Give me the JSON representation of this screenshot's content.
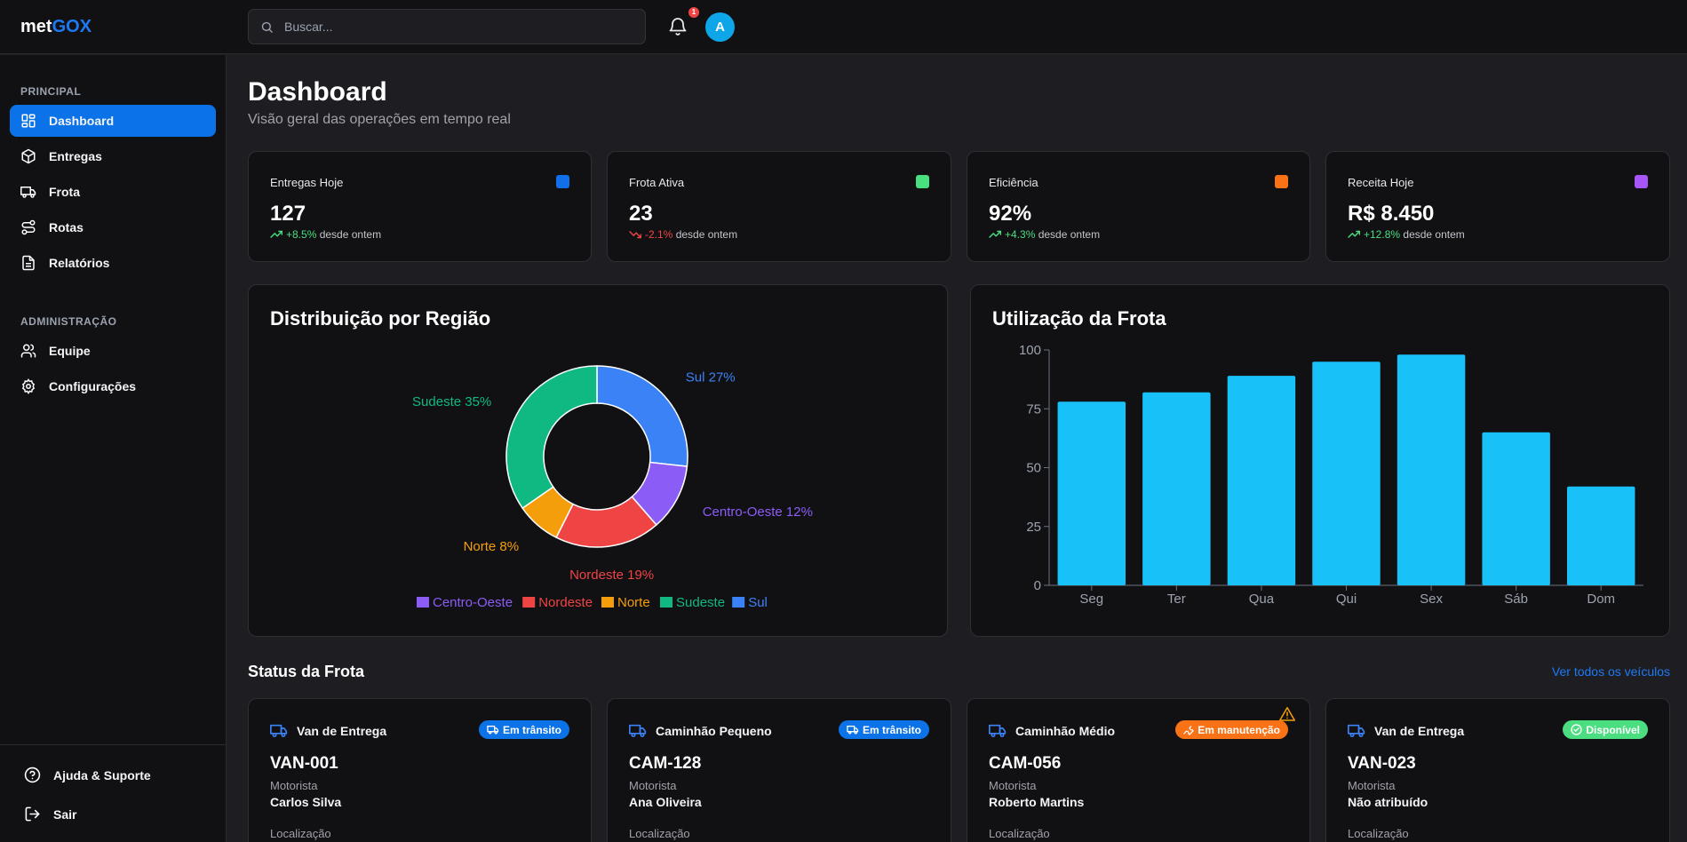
{
  "app": {
    "logo_prefix": "met",
    "logo_accent": "GOX"
  },
  "header": {
    "search_placeholder": "Buscar...",
    "notification_count": "1",
    "avatar_initial": "A"
  },
  "sidebar": {
    "section_principal": "PRINCIPAL",
    "section_admin": "ADMINISTRAÇÃO",
    "items": [
      {
        "label": "Dashboard",
        "icon": "dashboard-icon",
        "active": true
      },
      {
        "label": "Entregas",
        "icon": "package-icon"
      },
      {
        "label": "Frota",
        "icon": "truck-icon"
      },
      {
        "label": "Rotas",
        "icon": "route-icon"
      },
      {
        "label": "Relatórios",
        "icon": "report-icon"
      }
    ],
    "admin_items": [
      {
        "label": "Equipe",
        "icon": "users-icon"
      },
      {
        "label": "Configurações",
        "icon": "gear-icon"
      }
    ],
    "footer": [
      {
        "label": "Ajuda & Suporte",
        "icon": "help-icon"
      },
      {
        "label": "Sair",
        "icon": "logout-icon"
      }
    ]
  },
  "page": {
    "title": "Dashboard",
    "subtitle": "Visão geral das operações em tempo real"
  },
  "stats": [
    {
      "label": "Entregas Hoje",
      "value": "127",
      "trend": "+8.5%",
      "trend_suffix": "desde ontem",
      "color": "#1170e9"
    },
    {
      "label": "Frota Ativa",
      "value": "23",
      "trend": "-2.1%",
      "trend_suffix": "desde ontem",
      "color": "#4ade80"
    },
    {
      "label": "Eficiência",
      "value": "92%",
      "trend": "+4.3%",
      "trend_suffix": "desde ontem",
      "color": "#f97316"
    },
    {
      "label": "Receita Hoje",
      "value": "R$ 8.450",
      "trend": "+12.8%",
      "trend_suffix": "desde ontem",
      "color": "#a855f7"
    }
  ],
  "panels": {
    "region_title": "Distribuição por Região",
    "fleet_title": "Utilização da Frota"
  },
  "chart_data": [
    {
      "type": "pie",
      "title": "Distribuição por Região",
      "categories": [
        "Sul",
        "Centro-Oeste",
        "Nordeste",
        "Norte",
        "Sudeste"
      ],
      "values": [
        27,
        12,
        19,
        8,
        35
      ],
      "slice_labels": [
        "Sul 27%",
        "Centro-Oeste 12%",
        "Nordeste 19%",
        "Norte 8%",
        "Sudeste 35%"
      ],
      "colors": [
        "#3b82f6",
        "#8b5cf6",
        "#ef4444",
        "#f59e0b",
        "#10b981"
      ],
      "legend": [
        "Centro-Oeste",
        "Nordeste",
        "Norte",
        "Sudeste",
        "Sul"
      ],
      "legend_colors": [
        "#8b5cf6",
        "#ef4444",
        "#f59e0b",
        "#10b981",
        "#3b82f6"
      ],
      "legend_position": "bottom"
    },
    {
      "type": "bar",
      "title": "Utilização da Frota",
      "categories": [
        "Seg",
        "Ter",
        "Qua",
        "Qui",
        "Sex",
        "Sáb",
        "Dom"
      ],
      "values": [
        78,
        82,
        89,
        95,
        98,
        65,
        42
      ],
      "yticks": [
        "0",
        "25",
        "50",
        "75",
        "100"
      ],
      "ylim": [
        0,
        100
      ],
      "color": "#19c1f9"
    }
  ],
  "fleet_status": {
    "title": "Status da Frota",
    "link": "Ver todos os veículos",
    "driver_label": "Motorista",
    "location_label": "Localização",
    "vehicles": [
      {
        "type": "Van de Entrega",
        "status": "Em trânsito",
        "status_color": "#0b72e7",
        "id": "VAN-001",
        "driver": "Carlos Silva"
      },
      {
        "type": "Caminhão Pequeno",
        "status": "Em trânsito",
        "status_color": "#0b72e7",
        "id": "CAM-128",
        "driver": "Ana Oliveira"
      },
      {
        "type": "Caminhão Médio",
        "status": "Em manutenção",
        "status_color": "#f97316",
        "id": "CAM-056",
        "driver": "Roberto Martins",
        "warning": true
      },
      {
        "type": "Van de Entrega",
        "status": "Disponível",
        "status_color": "#4ade80",
        "id": "VAN-023",
        "driver": "Não atribuído"
      }
    ]
  }
}
